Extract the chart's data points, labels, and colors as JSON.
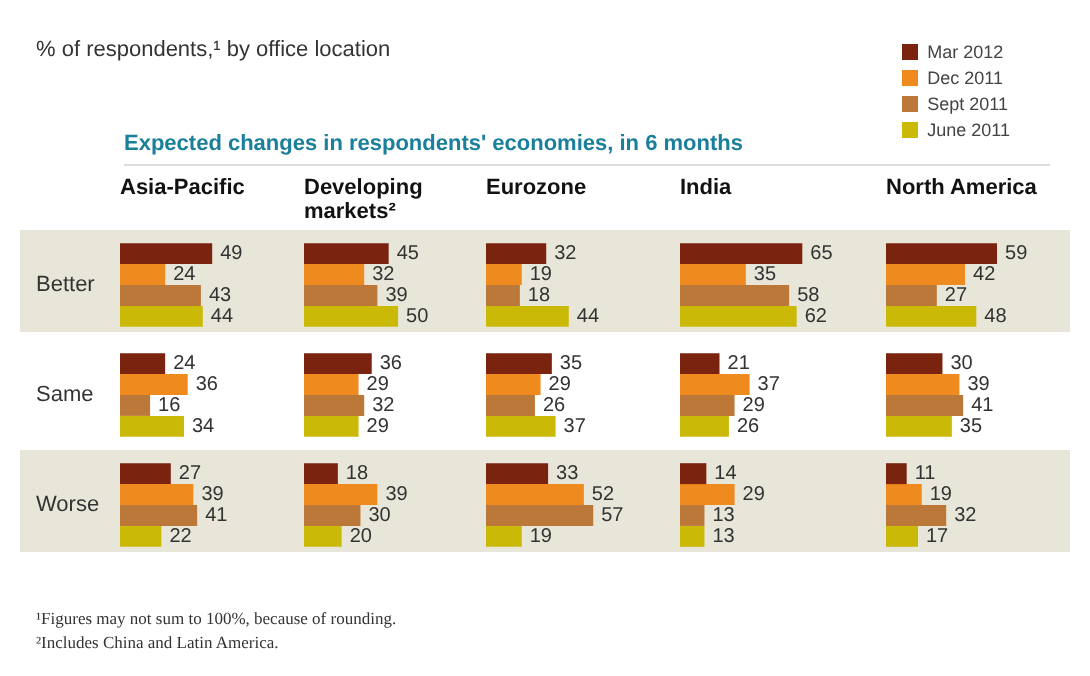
{
  "chart_data": [
    {
      "type": "other",
      "title": "% of respondents,¹ by office location",
      "subtitle": "Expected changes in respondents' economies, in 6 months",
      "annotations": [
        "¹Figures may not sum to 100%, because of rounding.",
        "²Includes China and Latin America."
      ]
    },
    {
      "type": "bar",
      "orientation": "horizontal",
      "title": "Asia-Pacific",
      "categories": [
        "Better",
        "Same",
        "Worse"
      ],
      "tick_labels": "y",
      "data_labels": true,
      "legend": "top right",
      "bands": [
        {
          "axis": "y",
          "from": "Better",
          "to": "Better",
          "color": "#e8e6d8"
        },
        {
          "axis": "y",
          "from": "Worse",
          "to": "Worse",
          "color": "#e8e6d8"
        }
      ],
      "series": [
        {
          "name": "Mar 2012",
          "color": "#7a2410",
          "values": [
            49,
            24,
            27
          ]
        },
        {
          "name": "Dec 2011",
          "color": "#ee8a1e",
          "values": [
            24,
            36,
            39
          ]
        },
        {
          "name": "Sept 2011",
          "color": "#bb7838",
          "values": [
            43,
            16,
            41
          ]
        },
        {
          "name": "June 2011",
          "color": "#cbb908",
          "values": [
            44,
            34,
            22
          ]
        }
      ]
    },
    {
      "type": "bar",
      "orientation": "horizontal",
      "title": "Developing markets²",
      "categories": [
        null,
        null,
        null
      ],
      "tick_labels": false,
      "data_labels": true,
      "legend": false,
      "series": [
        {
          "color": "#7a2410",
          "values": [
            45,
            36,
            18
          ]
        },
        {
          "color": "#ee8a1e",
          "values": [
            32,
            29,
            39
          ]
        },
        {
          "color": "#bb7838",
          "values": [
            39,
            32,
            30
          ]
        },
        {
          "color": "#cbb908",
          "values": [
            50,
            29,
            20
          ]
        }
      ]
    },
    {
      "type": "bar",
      "orientation": "horizontal",
      "title": "Eurozone",
      "categories": [
        null,
        null,
        null
      ],
      "tick_labels": false,
      "data_labels": true,
      "legend": false,
      "series": [
        {
          "color": "#7a2410",
          "values": [
            32,
            35,
            33
          ]
        },
        {
          "color": "#ee8a1e",
          "values": [
            19,
            29,
            52
          ]
        },
        {
          "color": "#bb7838",
          "values": [
            18,
            26,
            57
          ]
        },
        {
          "color": "#cbb908",
          "values": [
            44,
            37,
            19
          ]
        }
      ]
    },
    {
      "type": "bar",
      "orientation": "horizontal",
      "title": "India",
      "categories": [
        null,
        null,
        null
      ],
      "tick_labels": false,
      "data_labels": true,
      "legend": false,
      "series": [
        {
          "color": "#7a2410",
          "values": [
            65,
            21,
            14
          ]
        },
        {
          "color": "#ee8a1e",
          "values": [
            35,
            37,
            29
          ]
        },
        {
          "color": "#bb7838",
          "values": [
            58,
            29,
            13
          ]
        },
        {
          "color": "#cbb908",
          "values": [
            62,
            26,
            13
          ]
        }
      ]
    },
    {
      "type": "bar",
      "orientation": "horizontal",
      "title": "North America",
      "categories": [
        null,
        null,
        null
      ],
      "tick_labels": false,
      "data_labels": true,
      "legend": false,
      "series": [
        {
          "color": "#7a2410",
          "values": [
            59,
            30,
            11
          ]
        },
        {
          "color": "#ee8a1e",
          "values": [
            42,
            39,
            19
          ]
        },
        {
          "color": "#bb7838",
          "values": [
            27,
            41,
            32
          ]
        },
        {
          "color": "#cbb908",
          "values": [
            48,
            35,
            17
          ]
        }
      ]
    }
  ]
}
